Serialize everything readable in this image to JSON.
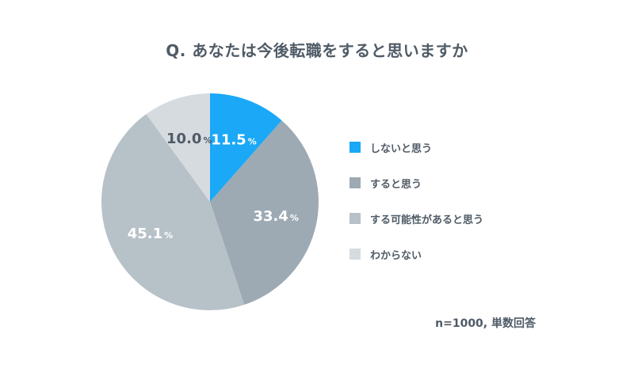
{
  "chart_data": {
    "type": "pie",
    "title": "Q. あなたは今後転職をすると思いますか",
    "categories": [
      "しないと思う",
      "すると思う",
      "する可能性があると思う",
      "わからない"
    ],
    "values": [
      11.5,
      33.4,
      45.1,
      10.0
    ],
    "colors": [
      "#1aa8f7",
      "#9daab4",
      "#b7c1c8",
      "#d6dbdf"
    ],
    "label_colors": [
      "#ffffff",
      "#ffffff",
      "#ffffff",
      "#4f5b66"
    ],
    "unit": "%",
    "legend_position": "right",
    "note": "n=1000, 単数回答"
  }
}
